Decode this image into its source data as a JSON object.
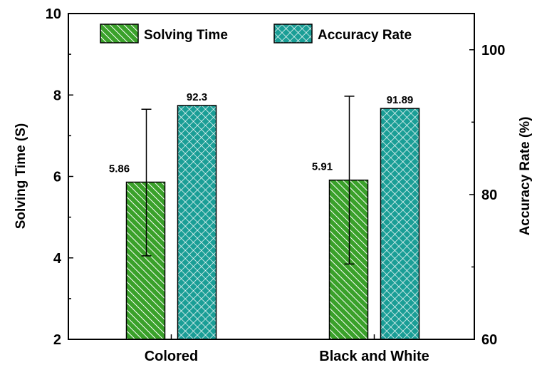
{
  "chart_data": {
    "type": "bar",
    "categories": [
      "Colored",
      "Black and White"
    ],
    "series": [
      {
        "name": "Solving Time",
        "axis": "left",
        "values": [
          5.86,
          5.91
        ],
        "error_low": [
          4.05,
          3.85
        ],
        "error_high": [
          7.65,
          7.97
        ],
        "labels": [
          "5.86",
          "5.91"
        ],
        "color": "#3aa12a",
        "pattern": "diagonal-hatch"
      },
      {
        "name": "Accuracy Rate",
        "axis": "right",
        "values": [
          92.3,
          91.89
        ],
        "labels": [
          "92.3",
          "91.89"
        ],
        "color": "#1a9e96",
        "pattern": "crosshatch"
      }
    ],
    "ylabel": "Solving Time (S)",
    "ylim": [
      2,
      10
    ],
    "yticks": [
      "2",
      "4",
      "6",
      "8",
      "10"
    ],
    "y2label": "Accuracy Rate (%)",
    "y2lim": [
      60,
      105
    ],
    "y2ticks": [
      "60",
      "80",
      "100"
    ],
    "grid": false,
    "legend": "top-center"
  }
}
